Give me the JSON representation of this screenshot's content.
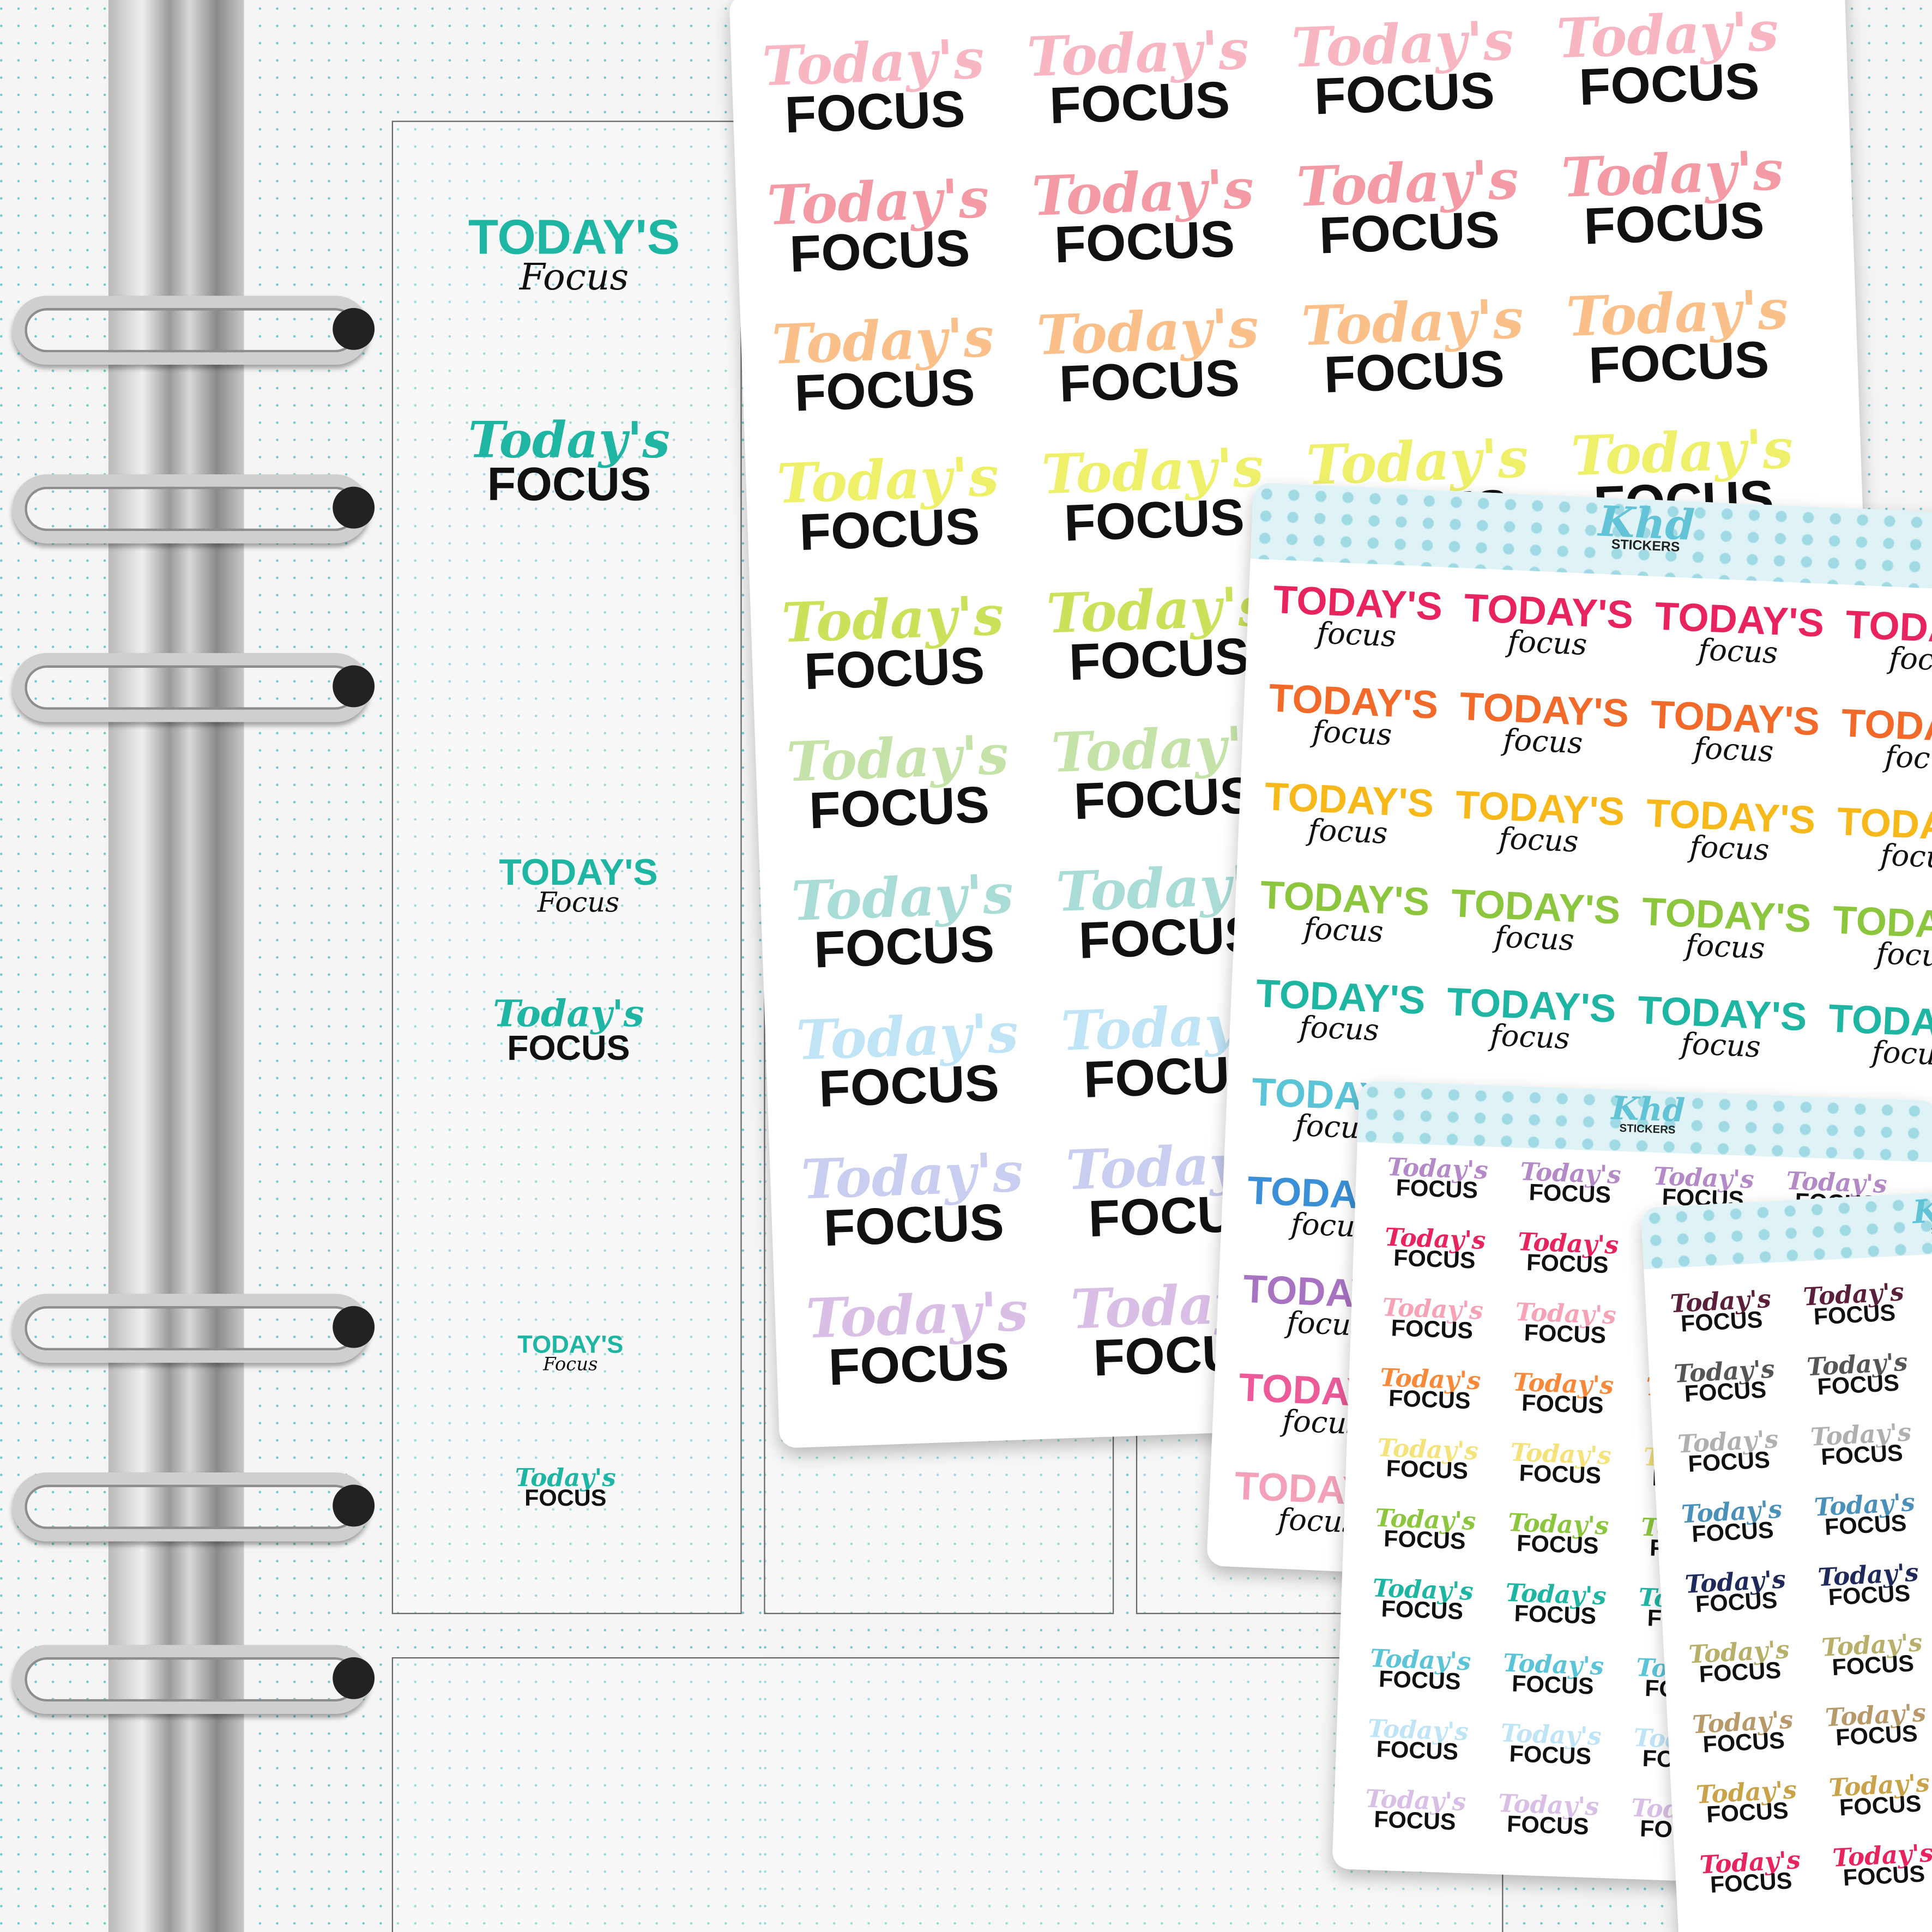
{
  "brand": {
    "logo": "Khd",
    "sub": "STICKERS"
  },
  "text": {
    "script_top": "Today's",
    "script_bottom": "FOCUS",
    "caps_top": "TODAY'S",
    "caps_bottom": "focus"
  },
  "planner_stickers": [
    {
      "top": "TODAY'S",
      "bottom": "Focus",
      "color": "#1fb5a3"
    },
    {
      "top": "Today's",
      "bottom": "FOCUS",
      "color": "#1fb5a3"
    },
    {
      "top": "TODAY'S",
      "bottom": "Focus",
      "color": "#1fb5a3"
    },
    {
      "top": "Today's",
      "bottom": "FOCUS",
      "color": "#1fb5a3"
    },
    {
      "top": "TODAY'S",
      "bottom": "Focus",
      "color": "#1fb5a3"
    },
    {
      "top": "Today's",
      "bottom": "FOCUS",
      "color": "#1fb5a3"
    }
  ],
  "sheet_large_colors": [
    "#f7b6c2",
    "#f49aa5",
    "#fbc08a",
    "#eef06a",
    "#c9e25a",
    "#c5e3a8",
    "#a9dcd6",
    "#bfe4f6",
    "#c9cdef",
    "#d9bfe6"
  ],
  "sheet_caps_colors": [
    "#e8245e",
    "#f26a2a",
    "#f7b81c",
    "#8cc63f",
    "#1fb5a3",
    "#5bc4d6",
    "#3a8fd6",
    "#a874c2",
    "#ec5a9a",
    "#f3a1b8"
  ],
  "sheet_small_colors": [
    "#b48ac6",
    "#e8245e",
    "#f6a3b8",
    "#f78a3a",
    "#f4e27a",
    "#8cc63f",
    "#1fb5a3",
    "#5bc4d6",
    "#bfe4f6",
    "#d9bfe6"
  ],
  "sheet_dark_colors": [
    "#5a1f3b",
    "#555555",
    "#b0b0b0",
    "#4a90b8",
    "#1f2a5a",
    "#b8b06a",
    "#b89a6a",
    "#c9a34a",
    "#e8245e"
  ]
}
